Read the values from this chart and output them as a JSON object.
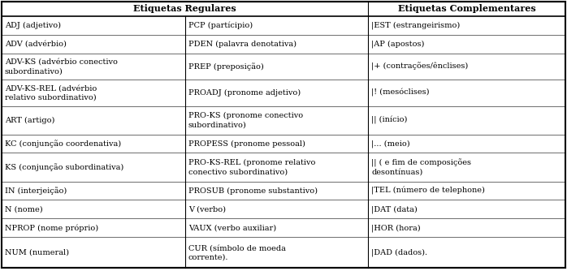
{
  "header_col1": "Etiquetas Regulares",
  "header_col2": "Etiquetas Complementares",
  "col1_rows": [
    "ADJ (adjetivo)",
    "ADV (advérbio)",
    "ADV-KS (advérbio conectivo\nsubordinativo)",
    "ADV-KS-REL (advérbio\nrelativo subordinativo)",
    "ART (artigo)",
    "",
    "KC (conjunção coordenativa)",
    "KS (conjunção subordinativa)",
    "",
    "IN (interjeição)",
    "N (nome)",
    "NPROP (nome próprio)",
    "",
    "NUM (numeral)"
  ],
  "col2_rows": [
    "PCP (partícipio)",
    "PDEN (palavra denotativa)",
    "PREP (preposição)",
    "",
    "PROADJ (pronome adjetivo)",
    "",
    "PRO-KS (pronome conectivo\nsubordinativo)",
    "",
    "PROPESS (pronome pessoal)",
    "PRO-KS-REL (pronome relativo\nconectivo subordinativo)",
    "",
    "PROSUB (pronome substantivo)",
    "V (verbo)",
    "VAUX (verbo auxiliar)",
    "CUR (símbolo de moeda\ncorrente)."
  ],
  "col3_rows": [
    "|EST (estrangeirismo)",
    "|AP (apostos)",
    "|+ (contrações/ênclises)",
    "",
    "|! (mesóclises)",
    "",
    "|| (início)",
    "",
    "|... (meio)",
    "|| ( e fim de composições\ndesontínuas)",
    "",
    "|TEL (número de telephone)",
    "|DAT (data)",
    "|HOR (hora)",
    "",
    "|DAD (dados)."
  ],
  "bg_color": "#ffffff",
  "font_size": 7.0,
  "header_font_size": 8.0
}
